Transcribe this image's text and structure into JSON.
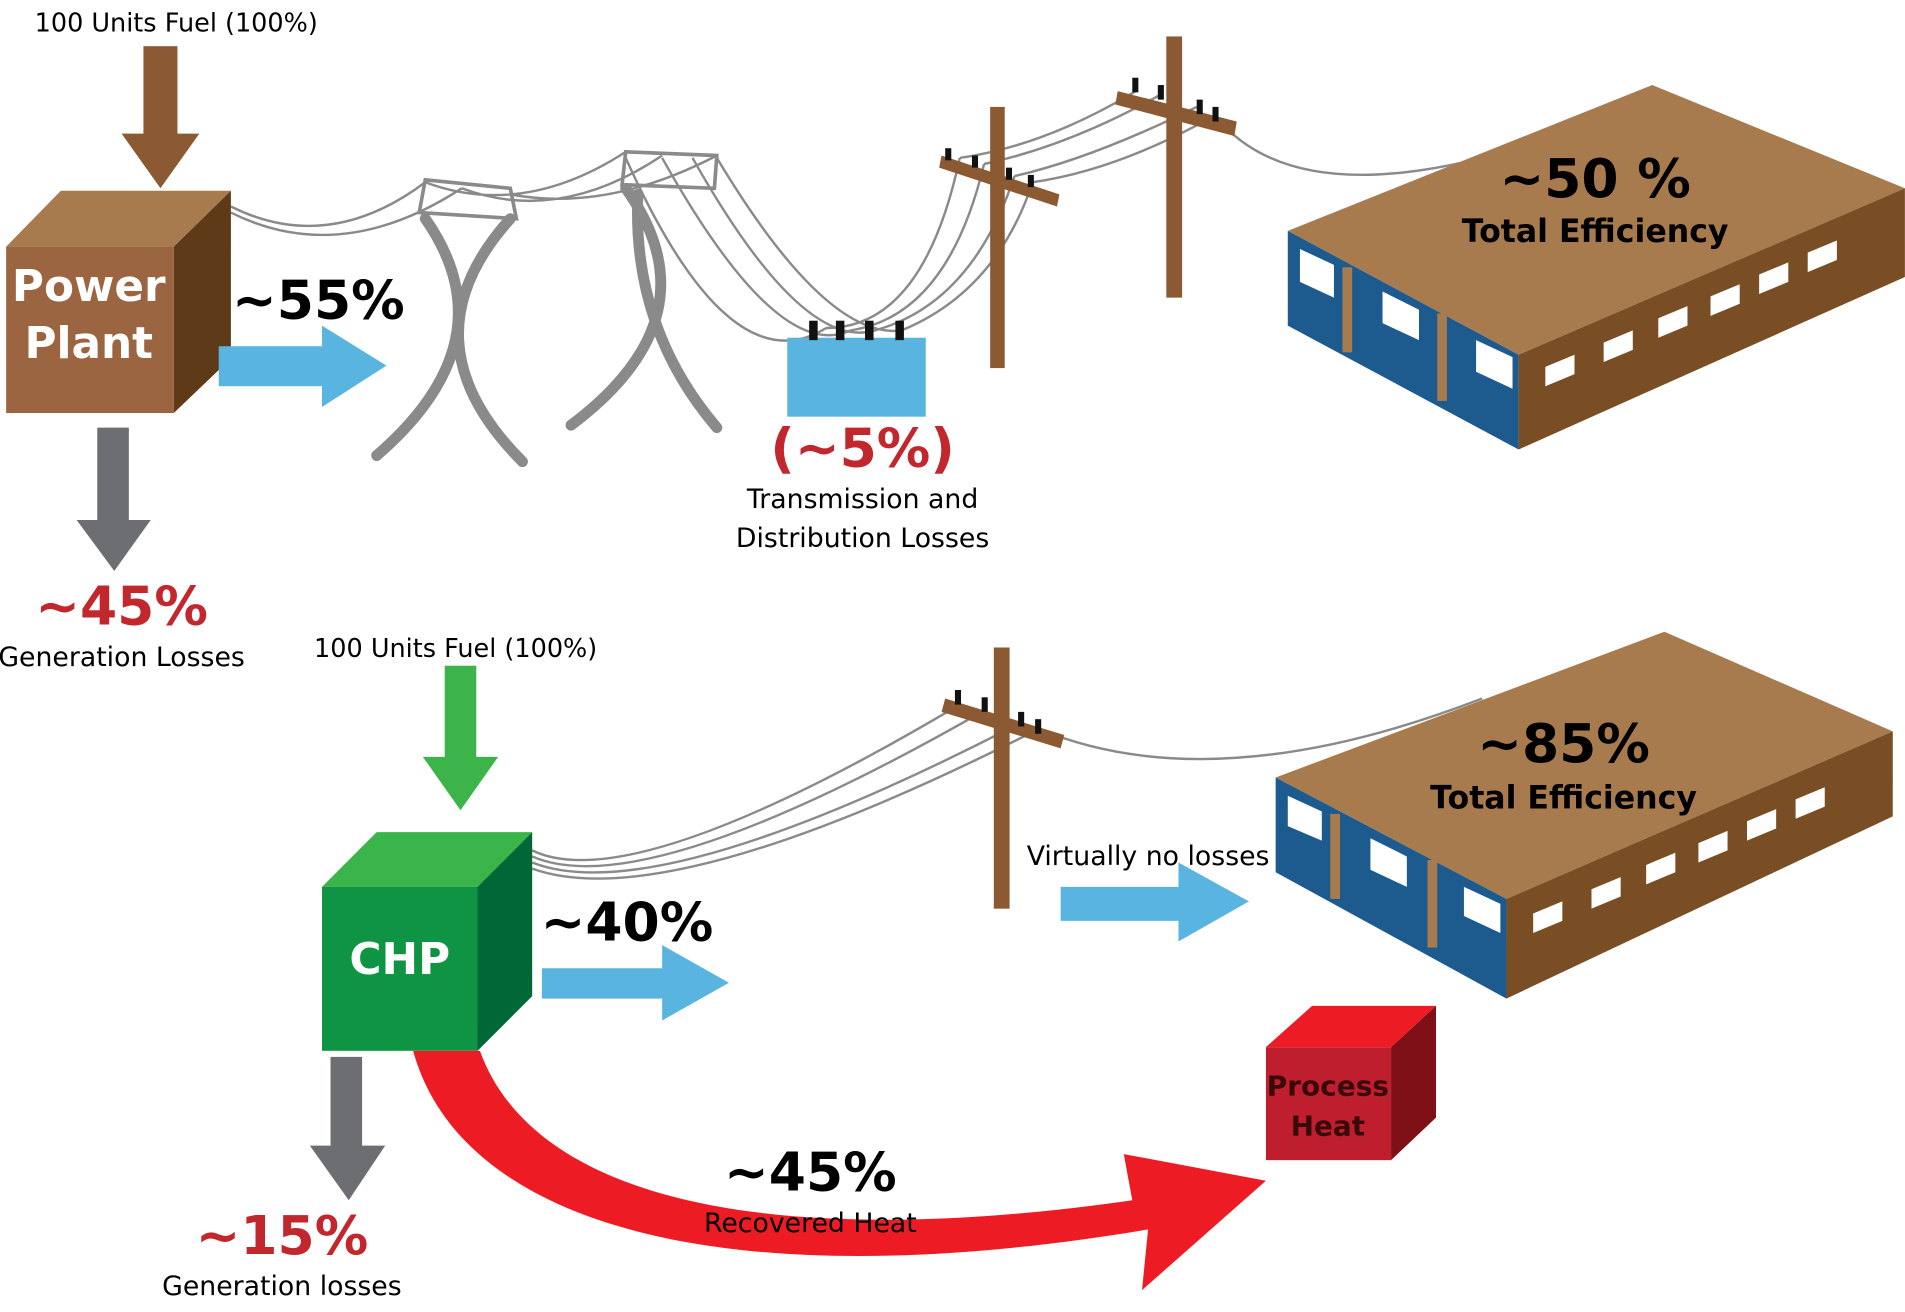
{
  "conventional": {
    "fuel_input": "100 Units Fuel (100%)",
    "plant_label": [
      "Power",
      "Plant"
    ],
    "delivered": "~55%",
    "generation_loss_value": "~45%",
    "generation_loss_label": "Generation Losses",
    "td_loss_value": "(~5%)",
    "td_loss_label": [
      "Transmission and",
      "Distribution Losses"
    ],
    "efficiency_value": "~50 %",
    "efficiency_label": "Total Efficiency"
  },
  "chp": {
    "fuel_input": "100 Units Fuel (100%)",
    "plant_label": "CHP",
    "delivered": "~40%",
    "delivery_note": "Virtually no losses",
    "generation_loss_value": "~15%",
    "generation_loss_label": "Generation losses",
    "recovered_value": "~45%",
    "recovered_label": "Recovered Heat",
    "process_label": [
      "Process",
      "Heat"
    ],
    "efficiency_value": "~85%",
    "efficiency_label": "Total Efficiency"
  }
}
